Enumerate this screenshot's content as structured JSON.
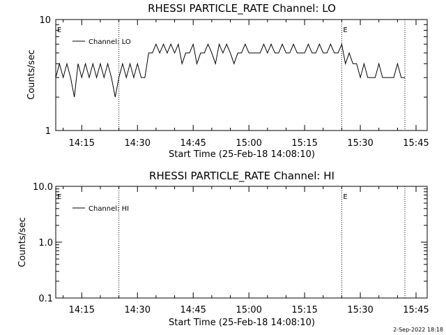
{
  "footer_date": "2-Sep-2022 18:18",
  "chart_data": [
    {
      "type": "line",
      "title": "RHESSI PARTICLE_RATE Channel: LO",
      "xlabel": "Start Time (25-Feb-18 14:08:10)",
      "ylabel": "Counts/sec",
      "yscale": "log",
      "ylim": [
        1,
        10
      ],
      "ytick_labels": [
        "10",
        "1"
      ],
      "xlim": [
        "14:08",
        "15:48"
      ],
      "xtick_labels": [
        "14:15",
        "14:30",
        "14:45",
        "15:00",
        "15:15",
        "15:30",
        "15:45"
      ],
      "legend": {
        "label": "Channel: LO",
        "placement": "top-left"
      },
      "markers": [
        {
          "time": "14:08",
          "label": "E"
        },
        {
          "time": "15:25",
          "label": "E"
        }
      ],
      "vlines": [
        "14:25",
        "15:25",
        "15:42"
      ],
      "series": [
        {
          "name": "Channel: LO",
          "x": [
            "14:08",
            "14:09",
            "14:10",
            "14:11",
            "14:12",
            "14:13",
            "14:14",
            "14:15",
            "14:16",
            "14:17",
            "14:18",
            "14:19",
            "14:20",
            "14:21",
            "14:22",
            "14:23",
            "14:24",
            "14:25",
            "14:26",
            "14:27",
            "14:28",
            "14:29",
            "14:30",
            "14:31",
            "14:32",
            "14:33",
            "14:34",
            "14:35",
            "14:36",
            "14:37",
            "14:38",
            "14:39",
            "14:40",
            "14:41",
            "14:42",
            "14:43",
            "14:44",
            "14:45",
            "14:46",
            "14:47",
            "14:48",
            "14:49",
            "14:50",
            "14:51",
            "14:52",
            "14:53",
            "14:54",
            "14:55",
            "14:56",
            "14:57",
            "14:58",
            "14:59",
            "15:00",
            "15:01",
            "15:02",
            "15:03",
            "15:04",
            "15:05",
            "15:06",
            "15:07",
            "15:08",
            "15:09",
            "15:10",
            "15:11",
            "15:12",
            "15:13",
            "15:14",
            "15:15",
            "15:16",
            "15:17",
            "15:18",
            "15:19",
            "15:20",
            "15:21",
            "15:22",
            "15:23",
            "15:24",
            "15:25",
            "15:26",
            "15:27",
            "15:28",
            "15:29",
            "15:30",
            "15:31",
            "15:32",
            "15:33",
            "15:34",
            "15:35",
            "15:36",
            "15:37",
            "15:38",
            "15:39",
            "15:40",
            "15:41",
            "15:42"
          ],
          "values": [
            3,
            4,
            3,
            4,
            3,
            2,
            4,
            3,
            4,
            3,
            4,
            3,
            4,
            3,
            4,
            3,
            2,
            3,
            4,
            3,
            4,
            3,
            4,
            3,
            3,
            5,
            5,
            6,
            5,
            6,
            5,
            6,
            5,
            6,
            4,
            5,
            5,
            6,
            4,
            5,
            5,
            6,
            5,
            4,
            6,
            5,
            6,
            5,
            4,
            5,
            5,
            6,
            5,
            5,
            5,
            5,
            6,
            5,
            6,
            5,
            5,
            6,
            5,
            5,
            6,
            5,
            5,
            5,
            6,
            5,
            5,
            6,
            5,
            5,
            6,
            5,
            5,
            6,
            4,
            5,
            4,
            4,
            3,
            4,
            3,
            3,
            3,
            4,
            3,
            3,
            3,
            3,
            4,
            3,
            3
          ]
        }
      ]
    },
    {
      "type": "line",
      "title": "RHESSI PARTICLE_RATE Channel: HI",
      "xlabel": "Start Time (25-Feb-18 14:08:10)",
      "ylabel": "Counts/sec",
      "yscale": "log",
      "ylim": [
        0.1,
        10
      ],
      "ytick_labels": [
        "10.0",
        "1.0",
        "0.1"
      ],
      "xlim": [
        "14:08",
        "15:48"
      ],
      "xtick_labels": [
        "14:15",
        "14:30",
        "14:45",
        "15:00",
        "15:15",
        "15:30",
        "15:45"
      ],
      "legend": {
        "label": "Channel: HI",
        "placement": "top-left"
      },
      "markers": [
        {
          "time": "14:08",
          "label": "E"
        },
        {
          "time": "15:25",
          "label": "E"
        }
      ],
      "vlines": [
        "14:25",
        "15:25",
        "15:42"
      ],
      "series": [
        {
          "name": "Channel: HI",
          "x": [],
          "values": []
        }
      ]
    }
  ]
}
